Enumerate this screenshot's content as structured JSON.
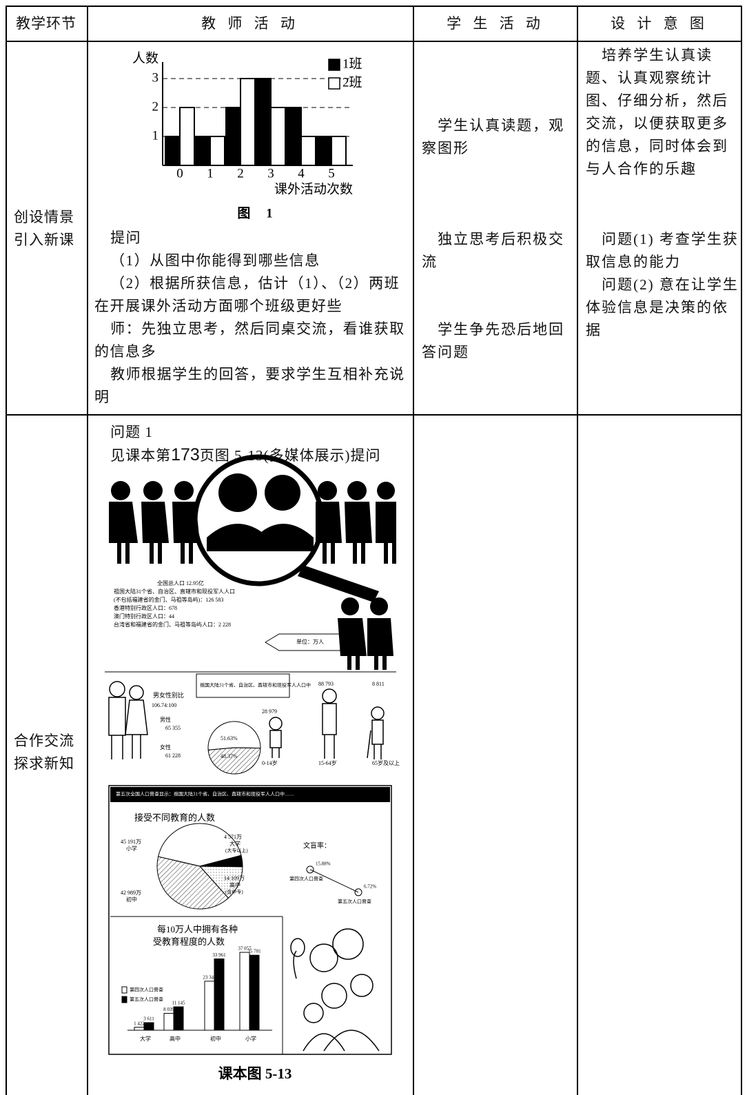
{
  "header": [
    "教学环节",
    "教 师 活 动",
    "学 生 活 动",
    "设 计 意 图"
  ],
  "rows": [
    {
      "stage": [
        "创设情景",
        "引入新课"
      ],
      "teacher": {
        "chart": {
          "type": "bar",
          "y_label": "人数",
          "x_label": "课外活动次数",
          "caption": "图 1",
          "categories": [
            "0",
            "1",
            "2",
            "3",
            "4",
            "5"
          ],
          "series": [
            {
              "name": "1班",
              "color": "#000000",
              "values": [
                1,
                1,
                2,
                3,
                2,
                1
              ]
            },
            {
              "name": "2班",
              "color": "#ffffff",
              "values": [
                2,
                1,
                3,
                2,
                1,
                1
              ]
            }
          ],
          "ylim": [
            0,
            3.5
          ],
          "yticks": [
            1,
            2,
            3
          ],
          "grid": true
        },
        "paragraphs": [
          "提问",
          "（1）从图中你能得到哪些信息",
          "（2）根据所获信息，估计（1）、（2）两班在开展课外活动方面哪个班级更好些",
          "师：先独立思考，然后同桌交流，看谁获取的信息多",
          "教师根据学生的回答，要求学生互相补充说明"
        ]
      },
      "student": [
        "学生认真读题，观察图形",
        "独立思考后积极交流",
        "学生争先恐后地回答问题"
      ],
      "intent": [
        "培养学生认真读题、认真观察统计图、仔细分析，然后交流，以便获取更多的信息，同时体会到与人合作的乐趣",
        "问题(1) 考查学生获取信息的能力",
        "问题(2) 意在让学生体验信息是决策的依据"
      ]
    },
    {
      "stage": [
        "合作交流",
        "探求新知"
      ],
      "teacher": {
        "question": "问题 1",
        "ref": {
          "before": "见课本第",
          "page": "173",
          "after": "页图 5-13(多媒体展示)提问"
        },
        "figure": {
          "census": [
            "全国总人口 12.95亿",
            "祖国大陆31个省、自治区、直辖市和现役军人人口",
            "(不包括福建省的金门、马祖等岛屿)：126 583",
            "香港特别行政区人口：678",
            "澳门特别行政区人口：44",
            "台湾省和福建省的金门、马祖等岛屿人口：2 228"
          ],
          "unit": "单位：万人",
          "gender": {
            "title": "男女性别比",
            "ratio": "106.74:100",
            "slices": [
              {
                "name": "男性",
                "count": "65 355",
                "value": 51.63,
                "label": "51.63%"
              },
              {
                "name": "女性",
                "count": "61 228",
                "value": 48.37,
                "label": "48.37%"
              }
            ]
          },
          "age": {
            "note": "祖国大陆31个省、自治区、直辖市和现役军人人口中",
            "groups": [
              {
                "name": "0-14岁",
                "count": "28 979"
              },
              {
                "name": "15-64岁",
                "count": "88 793"
              },
              {
                "name": "65岁及以上",
                "count": "8 811"
              }
            ]
          },
          "banner": "第五次全国人口普查显示：祖国大陆31个省、自治区、直辖市和现役军人人口中……",
          "education_pie": {
            "title": "接受不同教育的人数",
            "slices": [
              {
                "name": "小学",
                "value": 45191,
                "label": "45 191万"
              },
              {
                "name": "大学",
                "note": "(大专以上)",
                "value": 4571,
                "label": "4 571万"
              },
              {
                "name": "高中",
                "note": "(含中专)",
                "value": 14109,
                "label": "14 109万"
              },
              {
                "name": "初中",
                "value": 42989,
                "label": "42 989万"
              }
            ]
          },
          "illiteracy": {
            "title": "文盲率：",
            "points": [
              {
                "name": "第四次人口普查",
                "value": 15.88,
                "label": "15.88%"
              },
              {
                "name": "第五次人口普查",
                "value": 6.72,
                "label": "6.72%"
              }
            ]
          },
          "education_bars": {
            "title": [
              "每10万人中拥有各种",
              "受教育程度的人数"
            ],
            "categories": [
              "大学",
              "高中",
              "初中",
              "小学"
            ],
            "series": [
              {
                "name": "第四次人口普查",
                "color": "#ffffff",
                "values": [
                  1422,
                  8039,
                  23344,
                  37057
                ],
                "value_labels": [
                  "1 422",
                  "8 039",
                  "23 344",
                  "37 057"
                ]
              },
              {
                "name": "第五次人口普查",
                "color": "#000000",
                "values": [
                  3611,
                  11145,
                  33961,
                  35701
                ],
                "value_labels": [
                  "3 611",
                  "11 145",
                  "33 961",
                  "35 701"
                ]
              }
            ],
            "ylim": [
              0,
              37057
            ]
          }
        },
        "caption": "课本图 5-13"
      }
    }
  ]
}
